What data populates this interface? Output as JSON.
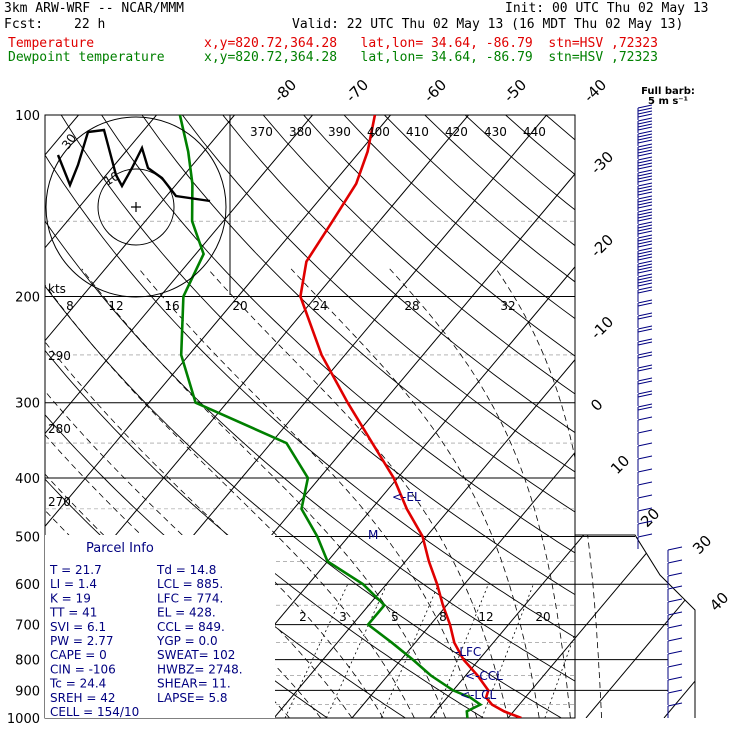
{
  "header": {
    "model": "3km ARW-WRF -- NCAR/MMM",
    "init": "Init: 00 UTC Thu 02 May 13",
    "fcst_label": "Fcst:",
    "fcst_value": "22 h",
    "valid": "Valid: 22 UTC Thu 02 May 13 (16 MDT Thu 02 May 13)",
    "temp_label": "Temperature",
    "dew_label": "Dewpoint temperature",
    "location": "x,y=820.72,364.28   lat,lon= 34.64, -86.79  stn=HSV ,72323"
  },
  "colors": {
    "temperature": "#e00000",
    "dewpoint": "#008000",
    "annotation": "#000080",
    "grid": "#000000"
  },
  "chart_data": {
    "type": "skew-t",
    "pressure_levels": [
      "100",
      "200",
      "300",
      "400",
      "500",
      "600",
      "700",
      "800",
      "900",
      "1000"
    ],
    "isotherm_labels": [
      "-80",
      "-70",
      "-60",
      "-50",
      "-40",
      "-30",
      "-20",
      "-10",
      "0",
      "10",
      "20",
      "30",
      "40"
    ],
    "theta_labels": [
      "370",
      "380",
      "390",
      "400",
      "410",
      "420",
      "430",
      "440"
    ],
    "theta_labels_low": [
      "290",
      "280",
      "270"
    ],
    "mixing_ratio_labels": [
      "2",
      "3",
      "5",
      "8",
      "12",
      "20"
    ],
    "hodo_speed_labels": [
      "8",
      "12",
      "16",
      "20",
      "24",
      "28",
      "32"
    ],
    "hodo_unit": "kts",
    "hodo_rings": [
      "10",
      "30"
    ],
    "barb_title": "Full barb:",
    "barb_unit": "5 m s⁻¹",
    "temperature_profile": [
      {
        "p": 1000,
        "t": 21.7
      },
      {
        "p": 975,
        "t": 18.8
      },
      {
        "p": 950,
        "t": 16.5
      },
      {
        "p": 925,
        "t": 15.0
      },
      {
        "p": 900,
        "t": 14.5
      },
      {
        "p": 850,
        "t": 11.5
      },
      {
        "p": 800,
        "t": 8.0
      },
      {
        "p": 750,
        "t": 5.0
      },
      {
        "p": 700,
        "t": 2.5
      },
      {
        "p": 650,
        "t": -0.5
      },
      {
        "p": 600,
        "t": -3.5
      },
      {
        "p": 550,
        "t": -7.0
      },
      {
        "p": 500,
        "t": -10.5
      },
      {
        "p": 450,
        "t": -15.5
      },
      {
        "p": 400,
        "t": -20.5
      },
      {
        "p": 350,
        "t": -27.0
      },
      {
        "p": 300,
        "t": -34.5
      },
      {
        "p": 250,
        "t": -43.0
      },
      {
        "p": 200,
        "t": -52.0
      },
      {
        "p": 175,
        "t": -55.0
      },
      {
        "p": 150,
        "t": -56.0
      },
      {
        "p": 130,
        "t": -57.0
      },
      {
        "p": 115,
        "t": -59.0
      },
      {
        "p": 100,
        "t": -62.0
      }
    ],
    "dewpoint_profile": [
      {
        "p": 1000,
        "t": 14.8
      },
      {
        "p": 975,
        "t": 14.0
      },
      {
        "p": 950,
        "t": 15.0
      },
      {
        "p": 925,
        "t": 13.0
      },
      {
        "p": 900,
        "t": 10.0
      },
      {
        "p": 850,
        "t": 5.5
      },
      {
        "p": 800,
        "t": 1.5
      },
      {
        "p": 750,
        "t": -3.0
      },
      {
        "p": 700,
        "t": -8.0
      },
      {
        "p": 650,
        "t": -8.0
      },
      {
        "p": 600,
        "t": -13.0
      },
      {
        "p": 550,
        "t": -20.0
      },
      {
        "p": 500,
        "t": -24.0
      },
      {
        "p": 450,
        "t": -29.0
      },
      {
        "p": 400,
        "t": -31.5
      },
      {
        "p": 350,
        "t": -38.0
      },
      {
        "p": 300,
        "t": -54.0
      },
      {
        "p": 250,
        "t": -61.0
      },
      {
        "p": 200,
        "t": -67.0
      },
      {
        "p": 170,
        "t": -69.0
      },
      {
        "p": 150,
        "t": -74.0
      },
      {
        "p": 130,
        "t": -78.0
      },
      {
        "p": 115,
        "t": -82.0
      },
      {
        "p": 100,
        "t": -87.0
      }
    ],
    "levels_marked": [
      {
        "label": "<-EL",
        "p": 428
      },
      {
        "label": "M",
        "p": 495
      },
      {
        "label": "-LFC",
        "p": 774
      },
      {
        "label": "<-CCL",
        "p": 849
      },
      {
        "label": "<-LCL",
        "p": 885
      }
    ]
  },
  "parcel": {
    "title": "Parcel Info",
    "rows": [
      [
        "T    =   21.7",
        "Td =  14.8"
      ],
      [
        "LI   =    1.4",
        "LCL =  885."
      ],
      [
        "K    =     19",
        "LFC =  774."
      ],
      [
        "TT   =     41",
        "EL  =  428."
      ],
      [
        "SVI  =    6.1",
        "CCL =  849."
      ],
      [
        "PW   =   2.77",
        "YGP =   0.0"
      ],
      [
        "CAPE =      0",
        "SWEAT=  102"
      ],
      [
        "CIN  =   -106",
        "HWBZ= 2748."
      ],
      [
        "Tc   =   24.4",
        "SHEAR=  11."
      ],
      [
        "SREH =     42",
        "LAPSE=  5.8"
      ],
      [
        "CELL = 154/10",
        ""
      ]
    ]
  }
}
